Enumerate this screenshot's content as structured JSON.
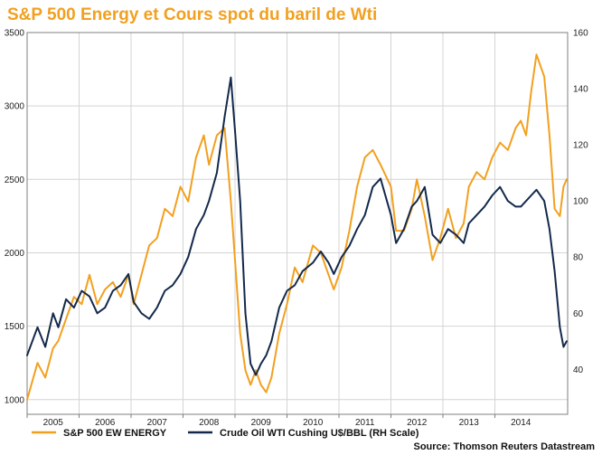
{
  "colors": {
    "background": "#ffffff",
    "title": "#f2a01f",
    "energy": "#f2a01f",
    "wti": "#13294b",
    "grid": "#d4d4d4",
    "frame": "#7f7f7f"
  },
  "chart_data": {
    "type": "line",
    "title": "S&P 500 Energy et Cours spot du baril de Wti",
    "grid": true,
    "legend_placement": "bottom",
    "source": "Source: Thomson Reuters Datastream",
    "x_ticks": [
      "2005",
      "2006",
      "2007",
      "2008",
      "2009",
      "2010",
      "2011",
      "2012",
      "2013",
      "2014"
    ],
    "xlim": [
      2004.5,
      2014.9
    ],
    "y_left": {
      "lim": [
        900,
        3500
      ],
      "ticks": [
        "1000",
        "1500",
        "2000",
        "2500",
        "3000",
        "3500"
      ]
    },
    "y_right": {
      "lim": [
        24,
        160
      ],
      "ticks": [
        "40",
        "60",
        "80",
        "100",
        "120",
        "140",
        "160"
      ]
    },
    "series": [
      {
        "name": "S&P 500 EW ENERGY",
        "axis": "left",
        "x": [
          2004.5,
          2004.7,
          2004.85,
          2005.0,
          2005.1,
          2005.25,
          2005.4,
          2005.55,
          2005.7,
          2005.85,
          2006.0,
          2006.15,
          2006.3,
          2006.45,
          2006.55,
          2006.7,
          2006.85,
          2007.0,
          2007.15,
          2007.3,
          2007.45,
          2007.6,
          2007.75,
          2007.9,
          2008.0,
          2008.15,
          2008.3,
          2008.42,
          2008.5,
          2008.6,
          2008.7,
          2008.8,
          2008.9,
          2009.0,
          2009.1,
          2009.2,
          2009.35,
          2009.5,
          2009.65,
          2009.8,
          2010.0,
          2010.15,
          2010.3,
          2010.4,
          2010.55,
          2010.7,
          2010.85,
          2011.0,
          2011.15,
          2011.3,
          2011.5,
          2011.6,
          2011.75,
          2011.9,
          2012.0,
          2012.15,
          2012.3,
          2012.45,
          2012.6,
          2012.75,
          2012.9,
          2013.0,
          2013.15,
          2013.3,
          2013.45,
          2013.6,
          2013.75,
          2013.9,
          2014.0,
          2014.1,
          2014.2,
          2014.3,
          2014.45,
          2014.55,
          2014.65,
          2014.75,
          2014.82,
          2014.88
        ],
        "values": [
          1000,
          1250,
          1150,
          1350,
          1400,
          1550,
          1700,
          1650,
          1850,
          1650,
          1750,
          1800,
          1700,
          1850,
          1650,
          1850,
          2050,
          2100,
          2300,
          2250,
          2450,
          2350,
          2650,
          2800,
          2600,
          2800,
          2850,
          2350,
          1950,
          1450,
          1200,
          1100,
          1200,
          1100,
          1050,
          1150,
          1450,
          1650,
          1900,
          1800,
          2050,
          2000,
          1850,
          1750,
          1900,
          2150,
          2450,
          2650,
          2700,
          2600,
          2450,
          2150,
          2150,
          2300,
          2500,
          2250,
          1950,
          2100,
          2300,
          2100,
          2200,
          2450,
          2550,
          2500,
          2650,
          2750,
          2700,
          2850,
          2900,
          2800,
          3100,
          3350,
          3200,
          2800,
          2300,
          2250,
          2450,
          2500
        ]
      },
      {
        "name": "Crude Oil WTI Cushing U$/BBL (RH Scale)",
        "axis": "right",
        "x": [
          2004.5,
          2004.7,
          2004.85,
          2005.0,
          2005.1,
          2005.25,
          2005.4,
          2005.55,
          2005.7,
          2005.85,
          2006.0,
          2006.15,
          2006.3,
          2006.45,
          2006.55,
          2006.7,
          2006.85,
          2007.0,
          2007.15,
          2007.3,
          2007.45,
          2007.6,
          2007.75,
          2007.9,
          2008.0,
          2008.15,
          2008.3,
          2008.42,
          2008.5,
          2008.6,
          2008.7,
          2008.8,
          2008.9,
          2009.0,
          2009.1,
          2009.2,
          2009.35,
          2009.5,
          2009.65,
          2009.8,
          2010.0,
          2010.15,
          2010.3,
          2010.4,
          2010.55,
          2010.7,
          2010.85,
          2011.0,
          2011.15,
          2011.3,
          2011.5,
          2011.6,
          2011.75,
          2011.9,
          2012.0,
          2012.15,
          2012.3,
          2012.45,
          2012.6,
          2012.75,
          2012.9,
          2013.0,
          2013.15,
          2013.3,
          2013.45,
          2013.6,
          2013.75,
          2013.9,
          2014.0,
          2014.1,
          2014.2,
          2014.3,
          2014.45,
          2014.55,
          2014.65,
          2014.75,
          2014.82,
          2014.88
        ],
        "values": [
          45,
          55,
          48,
          60,
          55,
          65,
          62,
          68,
          66,
          60,
          62,
          68,
          70,
          74,
          64,
          60,
          58,
          62,
          68,
          70,
          74,
          80,
          90,
          95,
          100,
          110,
          130,
          144,
          125,
          100,
          60,
          42,
          38,
          42,
          45,
          50,
          62,
          68,
          70,
          75,
          78,
          82,
          78,
          74,
          80,
          84,
          90,
          95,
          105,
          108,
          95,
          85,
          90,
          98,
          100,
          105,
          88,
          85,
          90,
          88,
          85,
          92,
          95,
          98,
          102,
          105,
          100,
          98,
          98,
          100,
          102,
          104,
          100,
          90,
          75,
          55,
          48,
          50
        ]
      }
    ]
  }
}
